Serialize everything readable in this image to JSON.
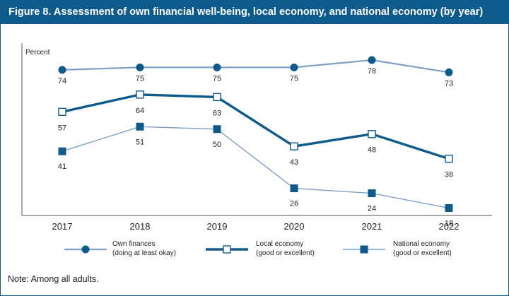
{
  "figure": {
    "title": "Figure 8. Assessment of own financial well-being, local economy, and national economy (by year)",
    "note": "Note: Among all adults."
  },
  "colors": {
    "title_bar": "#0e5a8a",
    "own_finances": "#7f9fc4",
    "local_economy": "#0e5a8a",
    "national_economy": "#7f9fc4",
    "marker_fill": "#0e5a8a"
  },
  "chart_data": {
    "type": "line",
    "title": "Assessment of own financial well-being, local economy, and national economy (by year)",
    "ylabel": "Percent",
    "xlabel": "",
    "ylim": [
      15,
      82
    ],
    "grid": false,
    "x": [
      "2017",
      "2018",
      "2019",
      "2020",
      "2021",
      "2022"
    ],
    "series": [
      {
        "key": "own",
        "name": "Own finances (doing at least okay)",
        "legend_lines": [
          "Own finances",
          "(doing at least okay)"
        ],
        "marker": "circle",
        "values": [
          74,
          75,
          75,
          75,
          78,
          73
        ]
      },
      {
        "key": "local",
        "name": "Local economy (good or excellent)",
        "legend_lines": [
          "Local economy",
          "(good or excellent)"
        ],
        "marker": "open-square",
        "values": [
          57,
          64,
          63,
          43,
          48,
          38
        ]
      },
      {
        "key": "national",
        "name": "National economy (good or excellent)",
        "legend_lines": [
          "National economy",
          "(good or excellent)"
        ],
        "marker": "filled-square",
        "values": [
          41,
          51,
          50,
          26,
          24,
          18
        ]
      }
    ]
  }
}
